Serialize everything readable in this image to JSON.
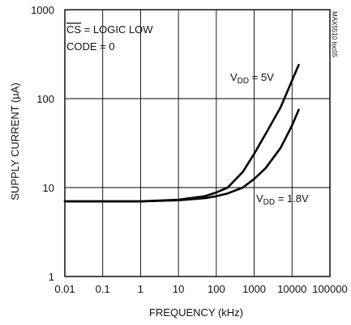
{
  "chart_data": {
    "type": "line",
    "title": "",
    "xlabel": "FREQUENCY (kHz)",
    "ylabel": "SUPPLY CURRENT (µA)",
    "x_scale": "log",
    "y_scale": "log",
    "xlim": [
      0.01,
      100000
    ],
    "ylim": [
      1,
      1000
    ],
    "x_ticks": [
      "0.01",
      "0.1",
      "1",
      "10",
      "100",
      "1000",
      "10000",
      "100000"
    ],
    "y_ticks": [
      "1",
      "10",
      "100",
      "1000"
    ],
    "grid": true,
    "annotations": {
      "cs_bar": "CS",
      "cs_rest": " = LOGIC LOW",
      "code": "CODE = 0",
      "side_note": "MAX5510 toc05"
    },
    "series": [
      {
        "name_main": "V",
        "name_sub": "DD",
        "name_tail": " = 5V",
        "x": [
          0.01,
          1,
          10,
          50,
          100,
          200,
          500,
          1000,
          2000,
          5000,
          10000,
          15000
        ],
        "y": [
          7,
          7,
          7.3,
          8,
          8.8,
          10,
          15,
          24,
          40,
          80,
          160,
          240
        ]
      },
      {
        "name_main": "V",
        "name_sub": "DD",
        "name_tail": " = 1.8V",
        "x": [
          0.01,
          1,
          10,
          50,
          100,
          200,
          500,
          1000,
          2000,
          5000,
          10000,
          15000
        ],
        "y": [
          7,
          7,
          7.2,
          7.6,
          8,
          8.6,
          10,
          12.5,
          16.5,
          28,
          50,
          75
        ]
      }
    ]
  }
}
